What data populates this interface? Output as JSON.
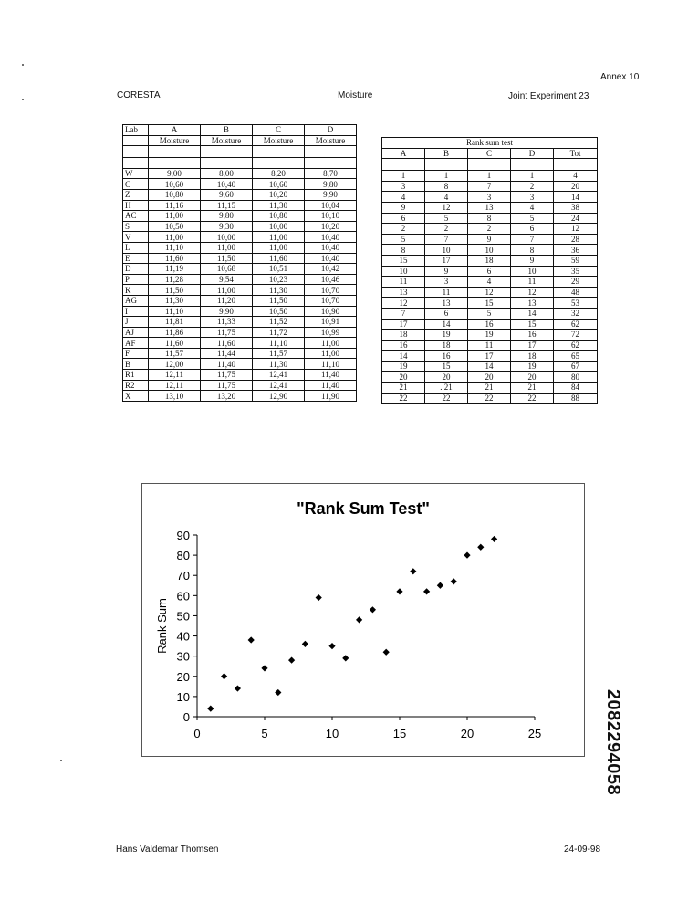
{
  "header": {
    "annex": "Annex 10",
    "org": "CORESTA",
    "topic": "Moisture",
    "experiment": "Joint Experiment 23"
  },
  "moisture_table": {
    "lab_header": "Lab",
    "columns": [
      "A",
      "B",
      "C",
      "D"
    ],
    "subheader": "Moisture",
    "rows": [
      {
        "lab": "W",
        "vals": [
          "9,00",
          "8,00",
          "8,20",
          "8,70"
        ]
      },
      {
        "lab": "C",
        "vals": [
          "10,60",
          "10,40",
          "10,60",
          "9,80"
        ]
      },
      {
        "lab": "Z",
        "vals": [
          "10,80",
          "9,60",
          "10,20",
          "9,90"
        ]
      },
      {
        "lab": "H",
        "vals": [
          "11,16",
          "11,15",
          "11,30",
          "10,04"
        ]
      },
      {
        "lab": "AC",
        "vals": [
          "11,00",
          "9,80",
          "10,80",
          "10,10"
        ]
      },
      {
        "lab": "S",
        "vals": [
          "10,50",
          "9,30",
          "10,00",
          "10,20"
        ]
      },
      {
        "lab": "V",
        "vals": [
          "11,00",
          "10,00",
          "11,00",
          "10,40"
        ]
      },
      {
        "lab": "L",
        "vals": [
          "11,10",
          "11,00",
          "11,00",
          "10,40"
        ]
      },
      {
        "lab": "E",
        "vals": [
          "11,60",
          "11,50",
          "11,60",
          "10,40"
        ]
      },
      {
        "lab": "D",
        "vals": [
          "11,19",
          "10,68",
          "10,51",
          "10,42"
        ]
      },
      {
        "lab": "P",
        "vals": [
          "11,28",
          "9,54",
          "10,23",
          "10,46"
        ]
      },
      {
        "lab": "K",
        "vals": [
          "11,50",
          "11,00",
          "11,30",
          "10,70"
        ]
      },
      {
        "lab": "AG",
        "vals": [
          "11,30",
          "11,20",
          "11,50",
          "10,70"
        ]
      },
      {
        "lab": "I",
        "vals": [
          "11,10",
          "9,90",
          "10,50",
          "10,90"
        ]
      },
      {
        "lab": "J",
        "vals": [
          "11,81",
          "11,33",
          "11,52",
          "10,91"
        ]
      },
      {
        "lab": "AJ",
        "vals": [
          "11,86",
          "11,75",
          "11,72",
          "10,99"
        ]
      },
      {
        "lab": "AF",
        "vals": [
          "11,60",
          "11,60",
          "11,10",
          "11,00"
        ]
      },
      {
        "lab": "F",
        "vals": [
          "11,57",
          "11,44",
          "11,57",
          "11,00"
        ]
      },
      {
        "lab": "B",
        "vals": [
          "12,00",
          "11,40",
          "11,30",
          "11,10"
        ]
      },
      {
        "lab": "R1",
        "vals": [
          "12,11",
          "11,75",
          "12,41",
          "11,40"
        ]
      },
      {
        "lab": "R2",
        "vals": [
          "12,11",
          "11,75",
          "12,41",
          "11,40"
        ]
      },
      {
        "lab": "X",
        "vals": [
          "13,10",
          "13,20",
          "12,90",
          "11,90"
        ]
      }
    ]
  },
  "rank_table": {
    "title": "Rank sum test",
    "columns": [
      "A",
      "B",
      "C",
      "D",
      "Tot"
    ],
    "rows": [
      [
        "1",
        "1",
        "1",
        "1",
        "4"
      ],
      [
        "3",
        "8",
        "7",
        "2",
        "20"
      ],
      [
        "4",
        "4",
        "3",
        "3",
        "14"
      ],
      [
        "9",
        "12",
        "13",
        "4",
        "38"
      ],
      [
        "6",
        "5",
        "8",
        "5",
        "24"
      ],
      [
        "2",
        "2",
        "2",
        "6",
        "12"
      ],
      [
        "5",
        "7",
        "9",
        "7",
        "28"
      ],
      [
        "8",
        "10",
        "10",
        "8",
        "36"
      ],
      [
        "15",
        "17",
        "18",
        "9",
        "59"
      ],
      [
        "10",
        "9",
        "6",
        "10",
        "35"
      ],
      [
        "11",
        "3",
        "4",
        "11",
        "29"
      ],
      [
        "13",
        "11",
        "12",
        "12",
        "48"
      ],
      [
        "12",
        "13",
        "15",
        "13",
        "53"
      ],
      [
        "7",
        "6",
        "5",
        "14",
        "32"
      ],
      [
        "17",
        "14",
        "16",
        "15",
        "62"
      ],
      [
        "18",
        "19",
        "19",
        "16",
        "72"
      ],
      [
        "16",
        "18",
        "11",
        "17",
        "62"
      ],
      [
        "14",
        "16",
        "17",
        "18",
        "65"
      ],
      [
        "19",
        "15",
        "14",
        "19",
        "67"
      ],
      [
        "20",
        "20",
        "20",
        "20",
        "80"
      ],
      [
        "21",
        ". 21",
        "21",
        "21",
        "84"
      ],
      [
        "22",
        "22",
        "22",
        "22",
        "88"
      ]
    ]
  },
  "chart_data": {
    "type": "scatter",
    "title": "\"Rank Sum Test\"",
    "xlabel": "",
    "ylabel": "Rank Sum",
    "xlim": [
      0,
      25
    ],
    "ylim": [
      0,
      90
    ],
    "xticks": [
      "0",
      "5",
      "10",
      "15",
      "20",
      "25"
    ],
    "yticks": [
      "0",
      "10",
      "20",
      "30",
      "40",
      "50",
      "60",
      "70",
      "80",
      "90"
    ],
    "grid": false,
    "marker_color": "#000000",
    "points": [
      {
        "x": 1,
        "y": 4
      },
      {
        "x": 2,
        "y": 20
      },
      {
        "x": 3,
        "y": 14
      },
      {
        "x": 4,
        "y": 38
      },
      {
        "x": 5,
        "y": 24
      },
      {
        "x": 6,
        "y": 12
      },
      {
        "x": 7,
        "y": 28
      },
      {
        "x": 8,
        "y": 36
      },
      {
        "x": 9,
        "y": 59
      },
      {
        "x": 10,
        "y": 35
      },
      {
        "x": 11,
        "y": 29
      },
      {
        "x": 12,
        "y": 48
      },
      {
        "x": 13,
        "y": 53
      },
      {
        "x": 14,
        "y": 32
      },
      {
        "x": 15,
        "y": 62
      },
      {
        "x": 16,
        "y": 72
      },
      {
        "x": 17,
        "y": 62
      },
      {
        "x": 18,
        "y": 65
      },
      {
        "x": 19,
        "y": 67
      },
      {
        "x": 20,
        "y": 80
      },
      {
        "x": 21,
        "y": 84
      },
      {
        "x": 22,
        "y": 88
      }
    ]
  },
  "document_id": "2082294058",
  "footer": {
    "author": "Hans Valdemar Thomsen",
    "date": "24-09-98"
  }
}
